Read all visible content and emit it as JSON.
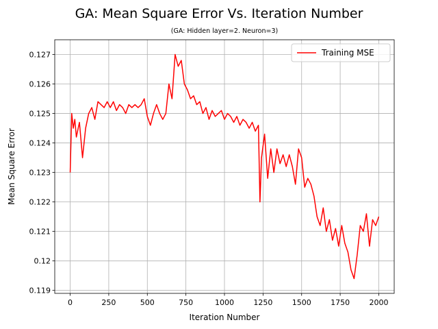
{
  "chart_data": {
    "type": "line",
    "title": "GA: Mean Square Error Vs. Iteration Number",
    "subtitle": "(GA: Hidden layer=2. Neuron=3)",
    "x_label": "Iteration Number",
    "y_label": "Mean Square Error",
    "x": [
      0,
      10,
      20,
      30,
      40,
      60,
      80,
      100,
      120,
      140,
      160,
      180,
      200,
      220,
      240,
      260,
      280,
      300,
      320,
      340,
      360,
      380,
      400,
      420,
      440,
      460,
      480,
      500,
      520,
      540,
      560,
      580,
      600,
      620,
      640,
      660,
      680,
      700,
      720,
      740,
      760,
      780,
      800,
      820,
      840,
      860,
      880,
      900,
      920,
      940,
      960,
      980,
      1000,
      1020,
      1040,
      1060,
      1080,
      1100,
      1120,
      1140,
      1160,
      1180,
      1200,
      1220,
      1230,
      1240,
      1260,
      1280,
      1300,
      1320,
      1340,
      1360,
      1380,
      1400,
      1420,
      1440,
      1460,
      1480,
      1500,
      1520,
      1540,
      1560,
      1580,
      1600,
      1620,
      1640,
      1660,
      1680,
      1700,
      1720,
      1740,
      1760,
      1780,
      1800,
      1820,
      1840,
      1860,
      1880,
      1900,
      1920,
      1940,
      1960,
      1980,
      2000
    ],
    "series": [
      {
        "name": "Training MSE",
        "color": "#ff0000",
        "values": [
          0.123,
          0.125,
          0.1245,
          0.1248,
          0.1242,
          0.1247,
          0.1235,
          0.1245,
          0.125,
          0.1252,
          0.1248,
          0.1254,
          0.1253,
          0.1252,
          0.1254,
          0.1252,
          0.1254,
          0.1251,
          0.1253,
          0.1252,
          0.125,
          0.1253,
          0.1252,
          0.1253,
          0.1252,
          0.1253,
          0.1255,
          0.1249,
          0.1246,
          0.125,
          0.1253,
          0.125,
          0.1248,
          0.125,
          0.126,
          0.1255,
          0.127,
          0.1266,
          0.1268,
          0.126,
          0.1258,
          0.1255,
          0.1256,
          0.1253,
          0.1254,
          0.125,
          0.1252,
          0.1248,
          0.1251,
          0.1249,
          0.125,
          0.1251,
          0.1248,
          0.125,
          0.1249,
          0.1247,
          0.1249,
          0.1246,
          0.1248,
          0.1247,
          0.1245,
          0.1247,
          0.1244,
          0.1246,
          0.122,
          0.1235,
          0.1243,
          0.1228,
          0.1238,
          0.123,
          0.1238,
          0.1233,
          0.1236,
          0.1232,
          0.1236,
          0.1232,
          0.1226,
          0.1238,
          0.1235,
          0.1225,
          0.1228,
          0.1226,
          0.1222,
          0.1215,
          0.1212,
          0.1218,
          0.121,
          0.1214,
          0.1207,
          0.1211,
          0.1205,
          0.1212,
          0.1206,
          0.1203,
          0.1197,
          0.1194,
          0.1202,
          0.1212,
          0.121,
          0.1216,
          0.1205,
          0.1214,
          0.1212,
          0.1215
        ]
      }
    ],
    "xlim": [
      -100,
      2100
    ],
    "ylim": [
      0.1189,
      0.1275
    ],
    "xticks": [
      0,
      250,
      500,
      750,
      1000,
      1250,
      1500,
      1750,
      2000
    ],
    "yticks": [
      0.119,
      0.12,
      0.121,
      0.122,
      0.123,
      0.124,
      0.125,
      0.126,
      0.127
    ],
    "grid": true,
    "legend": "upper-right"
  }
}
